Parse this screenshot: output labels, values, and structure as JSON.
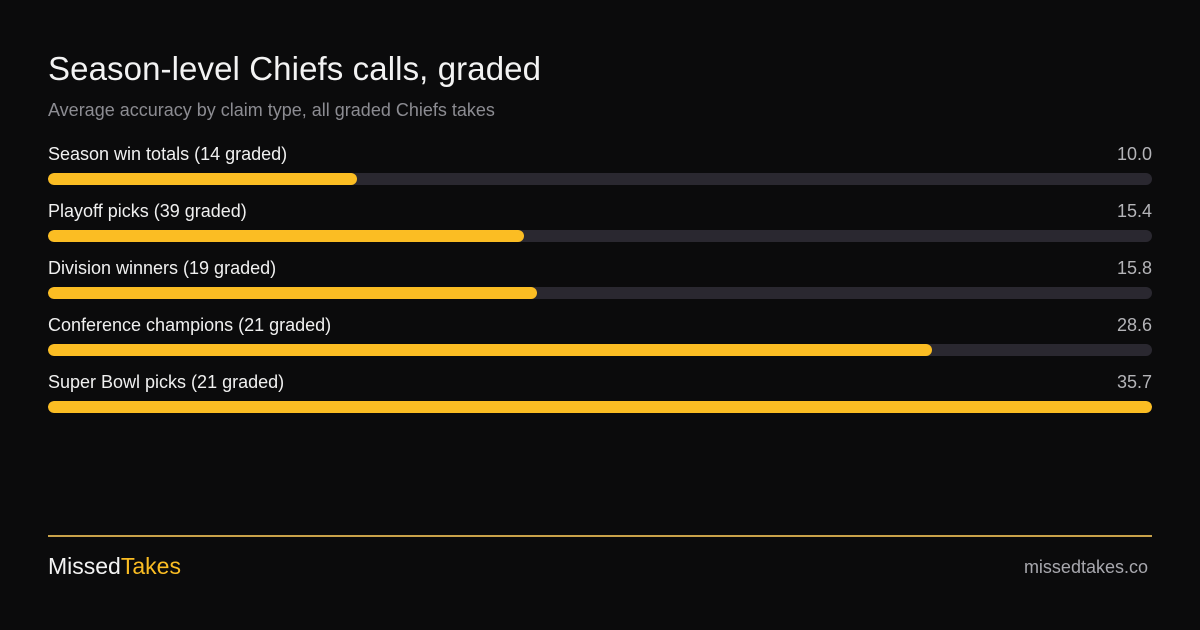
{
  "chart_data": {
    "type": "bar",
    "orientation": "horizontal",
    "title": "Season-level Chiefs calls, graded",
    "subtitle": "Average accuracy by claim type, all graded Chiefs takes",
    "categories": [
      "Season win totals (14 graded)",
      "Playoff picks (39 graded)",
      "Division winners (19 graded)",
      "Conference champions (21 graded)",
      "Super Bowl picks (21 graded)"
    ],
    "values": [
      10.0,
      15.4,
      15.8,
      28.6,
      35.7
    ],
    "value_labels": [
      "10.0",
      "15.4",
      "15.8",
      "28.6",
      "35.7"
    ],
    "xlim": [
      0,
      35.7
    ],
    "grid": false,
    "colors": {
      "bar": "#fbbd23",
      "track": "#2a2830",
      "background": "#0b0b0c"
    }
  },
  "footer": {
    "brand_part1": "Missed",
    "brand_part2": "Takes",
    "url": "missedtakes.co",
    "accent_color": "#fbbd23"
  }
}
